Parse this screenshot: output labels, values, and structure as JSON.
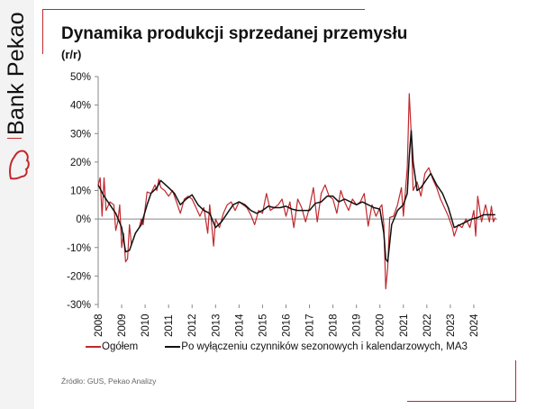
{
  "logo": {
    "text": "Bank Pekao"
  },
  "title": "Dynamika produkcji sprzedanej przemysłu",
  "subtitle": "(r/r)",
  "source": "Źródło: GUS, Pekao Analizy",
  "colors": {
    "ogolem": "#c0282d",
    "ma3": "#111111",
    "brand": "#c0282d"
  },
  "chart_data": {
    "type": "line",
    "title": "Dynamika produkcji sprzedanej przemysłu",
    "ylim": [
      -30,
      50
    ],
    "yticks": [
      -30,
      -20,
      -10,
      0,
      10,
      20,
      30,
      40,
      50
    ],
    "ytick_labels": [
      "-30%",
      "-20%",
      "-10%",
      "0%",
      "10%",
      "20%",
      "30%",
      "40%",
      "50%"
    ],
    "xtick_labels": [
      "2008",
      "2009",
      "2010",
      "2011",
      "2012",
      "2013",
      "2014",
      "2015",
      "2016",
      "2017",
      "2018",
      "2019",
      "2020",
      "2021",
      "2022",
      "2023",
      "2024"
    ],
    "grid": false,
    "legend_position": "bottom",
    "series": [
      {
        "name": "Ogółem",
        "color": "#c0282d",
        "points": [
          [
            "2008-01",
            12
          ],
          [
            "2008-02",
            14.5
          ],
          [
            "2008-03",
            1
          ],
          [
            "2008-04",
            14.5
          ],
          [
            "2008-05",
            3
          ],
          [
            "2008-07",
            6
          ],
          [
            "2008-09",
            5
          ],
          [
            "2008-10",
            -4
          ],
          [
            "2008-11",
            -1
          ],
          [
            "2008-12",
            5
          ],
          [
            "2009-01",
            -10
          ],
          [
            "2009-02",
            -5
          ],
          [
            "2009-03",
            -15
          ],
          [
            "2009-04",
            -14
          ],
          [
            "2009-05",
            -2
          ],
          [
            "2009-06",
            -9
          ],
          [
            "2009-08",
            -5
          ],
          [
            "2009-10",
            -3
          ],
          [
            "2009-11",
            0
          ],
          [
            "2009-12",
            -2
          ],
          [
            "2010-02",
            9.5
          ],
          [
            "2010-04",
            9
          ],
          [
            "2010-06",
            12
          ],
          [
            "2010-07",
            10
          ],
          [
            "2010-08",
            14
          ],
          [
            "2010-09",
            11
          ],
          [
            "2010-11",
            10
          ],
          [
            "2011-01",
            8
          ],
          [
            "2011-03",
            10
          ],
          [
            "2011-05",
            6
          ],
          [
            "2011-07",
            2
          ],
          [
            "2011-09",
            7
          ],
          [
            "2011-11",
            8
          ],
          [
            "2012-01",
            7
          ],
          [
            "2012-03",
            4
          ],
          [
            "2012-05",
            1
          ],
          [
            "2012-07",
            4
          ],
          [
            "2012-09",
            -5
          ],
          [
            "2012-10",
            5
          ],
          [
            "2012-11",
            -2
          ],
          [
            "2012-12",
            -9.5
          ],
          [
            "2013-01",
            0
          ],
          [
            "2013-03",
            -3
          ],
          [
            "2013-05",
            2
          ],
          [
            "2013-07",
            5
          ],
          [
            "2013-09",
            6
          ],
          [
            "2013-11",
            3
          ],
          [
            "2014-01",
            6
          ],
          [
            "2014-03",
            5
          ],
          [
            "2014-05",
            4
          ],
          [
            "2014-07",
            1.5
          ],
          [
            "2014-09",
            -2
          ],
          [
            "2014-11",
            3
          ],
          [
            "2015-01",
            2
          ],
          [
            "2015-03",
            9
          ],
          [
            "2015-05",
            3
          ],
          [
            "2015-07",
            4
          ],
          [
            "2015-09",
            5
          ],
          [
            "2015-11",
            7
          ],
          [
            "2016-01",
            1
          ],
          [
            "2016-03",
            6
          ],
          [
            "2016-05",
            -3
          ],
          [
            "2016-07",
            7
          ],
          [
            "2016-09",
            4
          ],
          [
            "2016-11",
            -1
          ],
          [
            "2017-01",
            4
          ],
          [
            "2017-03",
            11
          ],
          [
            "2017-05",
            -1
          ],
          [
            "2017-07",
            9
          ],
          [
            "2017-09",
            12
          ],
          [
            "2017-11",
            8
          ],
          [
            "2018-01",
            7
          ],
          [
            "2018-03",
            2
          ],
          [
            "2018-05",
            10
          ],
          [
            "2018-07",
            6
          ],
          [
            "2018-09",
            3
          ],
          [
            "2018-11",
            7
          ],
          [
            "2019-01",
            5
          ],
          [
            "2019-03",
            6
          ],
          [
            "2019-05",
            9
          ],
          [
            "2019-07",
            -2.5
          ],
          [
            "2019-09",
            5
          ],
          [
            "2019-11",
            1
          ],
          [
            "2020-01",
            4
          ],
          [
            "2020-02",
            5
          ],
          [
            "2020-03",
            -2
          ],
          [
            "2020-04",
            -24.5
          ],
          [
            "2020-05",
            -17
          ],
          [
            "2020-06",
            0.5
          ],
          [
            "2020-08",
            1
          ],
          [
            "2020-10",
            5
          ],
          [
            "2020-12",
            11
          ],
          [
            "2021-01",
            1
          ],
          [
            "2021-03",
            18
          ],
          [
            "2021-04",
            44
          ],
          [
            "2021-05",
            30
          ],
          [
            "2021-06",
            10
          ],
          [
            "2021-08",
            13
          ],
          [
            "2021-10",
            8
          ],
          [
            "2021-12",
            16
          ],
          [
            "2022-02",
            18
          ],
          [
            "2022-04",
            14
          ],
          [
            "2022-06",
            11
          ],
          [
            "2022-08",
            7
          ],
          [
            "2022-10",
            4
          ],
          [
            "2022-12",
            1
          ],
          [
            "2023-02",
            -3
          ],
          [
            "2023-03",
            -6
          ],
          [
            "2023-05",
            -2
          ],
          [
            "2023-07",
            -3
          ],
          [
            "2023-09",
            0
          ],
          [
            "2023-11",
            -3
          ],
          [
            "2024-01",
            3
          ],
          [
            "2024-02",
            -6
          ],
          [
            "2024-03",
            8
          ],
          [
            "2024-05",
            -1
          ],
          [
            "2024-07",
            5
          ],
          [
            "2024-09",
            -1
          ],
          [
            "2024-10",
            4.5
          ],
          [
            "2024-11",
            -1
          ],
          [
            "2024-12",
            0.5
          ]
        ]
      },
      {
        "name": "Po wyłączeniu czynników sezonowych i kalendarzowych, MA3",
        "color": "#111111",
        "points": [
          [
            "2008-01",
            12
          ],
          [
            "2008-04",
            8
          ],
          [
            "2008-07",
            5
          ],
          [
            "2008-10",
            2
          ],
          [
            "2009-01",
            -3
          ],
          [
            "2009-03",
            -11.5
          ],
          [
            "2009-05",
            -11
          ],
          [
            "2009-08",
            -5
          ],
          [
            "2009-11",
            -2
          ],
          [
            "2010-02",
            5
          ],
          [
            "2010-04",
            9
          ],
          [
            "2010-07",
            11
          ],
          [
            "2010-09",
            13.5
          ],
          [
            "2011-01",
            11
          ],
          [
            "2011-04",
            9
          ],
          [
            "2011-07",
            5
          ],
          [
            "2011-10",
            7
          ],
          [
            "2012-01",
            8.5
          ],
          [
            "2012-04",
            5
          ],
          [
            "2012-07",
            3
          ],
          [
            "2012-10",
            2
          ],
          [
            "2013-01",
            -3
          ],
          [
            "2013-04",
            -1
          ],
          [
            "2013-07",
            2
          ],
          [
            "2013-10",
            5
          ],
          [
            "2014-01",
            6
          ],
          [
            "2014-04",
            5
          ],
          [
            "2014-07",
            3
          ],
          [
            "2014-10",
            2
          ],
          [
            "2015-01",
            3
          ],
          [
            "2015-04",
            4.5
          ],
          [
            "2015-07",
            4
          ],
          [
            "2015-10",
            4
          ],
          [
            "2016-01",
            4.5
          ],
          [
            "2016-04",
            3.5
          ],
          [
            "2016-07",
            3
          ],
          [
            "2016-10",
            3
          ],
          [
            "2017-01",
            3
          ],
          [
            "2017-04",
            5.5
          ],
          [
            "2017-07",
            6
          ],
          [
            "2017-10",
            8
          ],
          [
            "2018-01",
            8
          ],
          [
            "2018-04",
            6
          ],
          [
            "2018-07",
            7
          ],
          [
            "2018-10",
            6
          ],
          [
            "2019-01",
            5
          ],
          [
            "2019-04",
            6
          ],
          [
            "2019-07",
            5
          ],
          [
            "2019-10",
            4
          ],
          [
            "2020-01",
            3.5
          ],
          [
            "2020-03",
            -5
          ],
          [
            "2020-04",
            -14
          ],
          [
            "2020-05",
            -15
          ],
          [
            "2020-07",
            -2
          ],
          [
            "2020-10",
            3
          ],
          [
            "2021-01",
            5
          ],
          [
            "2021-03",
            9
          ],
          [
            "2021-04",
            22
          ],
          [
            "2021-05",
            31
          ],
          [
            "2021-06",
            20
          ],
          [
            "2021-08",
            10
          ],
          [
            "2021-10",
            11
          ],
          [
            "2022-01",
            14
          ],
          [
            "2022-03",
            16
          ],
          [
            "2022-06",
            12
          ],
          [
            "2022-09",
            9
          ],
          [
            "2022-12",
            4
          ],
          [
            "2023-03",
            -3
          ],
          [
            "2023-06",
            -2
          ],
          [
            "2023-09",
            -1
          ],
          [
            "2023-12",
            0
          ],
          [
            "2024-03",
            0.5
          ],
          [
            "2024-06",
            1.5
          ],
          [
            "2024-09",
            1.5
          ],
          [
            "2024-12",
            1.5
          ]
        ]
      }
    ]
  }
}
